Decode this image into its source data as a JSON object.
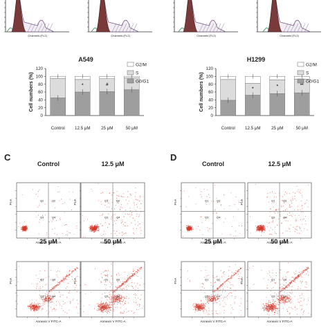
{
  "panel_letters": [
    "C",
    "D"
  ],
  "histogram_axis_text": "Channels (FL2)",
  "bar_legend": [
    "G2/M",
    "S",
    "G0/G1"
  ],
  "bar_ylabel": "Cell numbers (%)",
  "bar_yticks": [
    "0",
    "20",
    "40",
    "60",
    "80",
    "100",
    "120"
  ],
  "quadrant_labels": [
    "Q1",
    "Q2",
    "Q3",
    "Q4"
  ],
  "scatter_xlabel": "Annexin V FITC-A",
  "scatter_ylabel": "PI-A",
  "colors": {
    "g0g1": "#9e9e9e",
    "s": "#dcdcdc",
    "g2m": "#ffffff",
    "histogram_fill": "#7a3a3a",
    "dots": "#d33a2c"
  },
  "chart_data": [
    {
      "type": "bar",
      "stacked": true,
      "title": "A549",
      "categories": [
        "Control",
        "12.5 μM",
        "25 μM",
        "50 μM"
      ],
      "series": [
        {
          "name": "G0/G1",
          "values": [
            45,
            60,
            61,
            66
          ]
        },
        {
          "name": "S",
          "values": [
            50,
            32,
            33,
            30
          ]
        },
        {
          "name": "G2/M",
          "values": [
            5,
            8,
            6,
            4
          ]
        }
      ],
      "markers": [
        "",
        "*",
        "#",
        "**"
      ],
      "ylabel": "Cell numbers (%)",
      "ylim": [
        0,
        120
      ],
      "legend": "top-right"
    },
    {
      "type": "bar",
      "stacked": true,
      "title": "H1299",
      "categories": [
        "Control",
        "12.5 μM",
        "25 μM",
        "50 μM"
      ],
      "series": [
        {
          "name": "G0/G1",
          "values": [
            39,
            52,
            56,
            58
          ]
        },
        {
          "name": "S",
          "values": [
            53,
            30,
            35,
            35
          ]
        },
        {
          "name": "G2/M",
          "values": [
            8,
            18,
            9,
            7
          ]
        }
      ],
      "markers": [
        "",
        "*",
        "*",
        "**"
      ],
      "ylabel": "Cell numbers (%)",
      "ylim": [
        0,
        120
      ],
      "legend": "top-right"
    },
    {
      "type": "scatter",
      "panel": "C",
      "titles": [
        "Control",
        "12.5 μM",
        "25 μM",
        "50 μM"
      ],
      "xlabel": "Annexin V FITC-A",
      "ylabel": "PI-A"
    },
    {
      "type": "scatter",
      "panel": "D",
      "titles": [
        "Control",
        "12.5 μM",
        "25 μM",
        "50 μM"
      ],
      "xlabel": "Annexin V FITC-A",
      "ylabel": "PI-A"
    }
  ]
}
